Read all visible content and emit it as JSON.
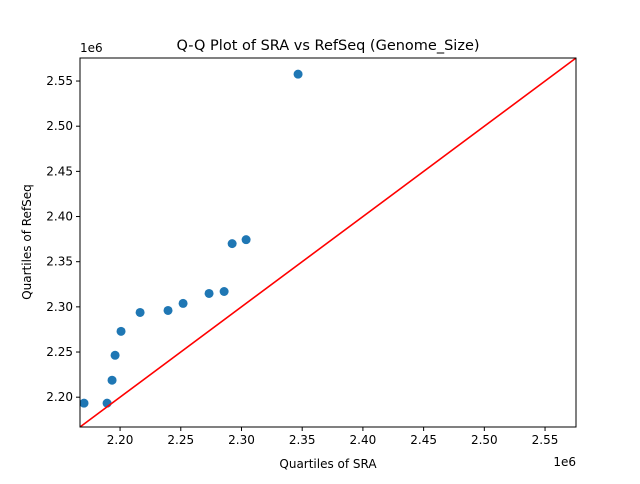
{
  "chart_data": {
    "type": "scatter",
    "title": "Q-Q Plot of SRA vs RefSeq (Genome_Size)",
    "xlabel": "Quartiles of SRA",
    "ylabel": "Quartiles of RefSeq",
    "x_offset_label": "1e6",
    "y_offset_label": "1e6",
    "xlim": [
      2.167,
      2.5755
    ],
    "ylim": [
      2.167,
      2.5755
    ],
    "xticks": [
      2.2,
      2.25,
      2.3,
      2.35,
      2.4,
      2.45,
      2.5,
      2.55
    ],
    "xtick_labels": [
      "2.20",
      "2.25",
      "2.30",
      "2.35",
      "2.40",
      "2.45",
      "2.50",
      "2.55"
    ],
    "yticks": [
      2.2,
      2.25,
      2.3,
      2.35,
      2.4,
      2.45,
      2.5,
      2.55
    ],
    "ytick_labels": [
      "2.20",
      "2.25",
      "2.30",
      "2.35",
      "2.40",
      "2.45",
      "2.50",
      "2.55"
    ],
    "grid": false,
    "point_color": "#1f77b4",
    "reference_line_color": "#ff0000",
    "reference_line": "y = x",
    "points": [
      {
        "x": 2.1703,
        "y": 2.1934
      },
      {
        "x": 2.1893,
        "y": 2.1934
      },
      {
        "x": 2.1934,
        "y": 2.2188
      },
      {
        "x": 2.1959,
        "y": 2.2464
      },
      {
        "x": 2.2008,
        "y": 2.2729
      },
      {
        "x": 2.2165,
        "y": 2.2938
      },
      {
        "x": 2.2395,
        "y": 2.296
      },
      {
        "x": 2.2519,
        "y": 2.3038
      },
      {
        "x": 2.2733,
        "y": 2.3148
      },
      {
        "x": 2.2857,
        "y": 2.317
      },
      {
        "x": 2.2923,
        "y": 2.37
      },
      {
        "x": 2.3038,
        "y": 2.3744
      },
      {
        "x": 2.3466,
        "y": 2.5576
      }
    ]
  }
}
